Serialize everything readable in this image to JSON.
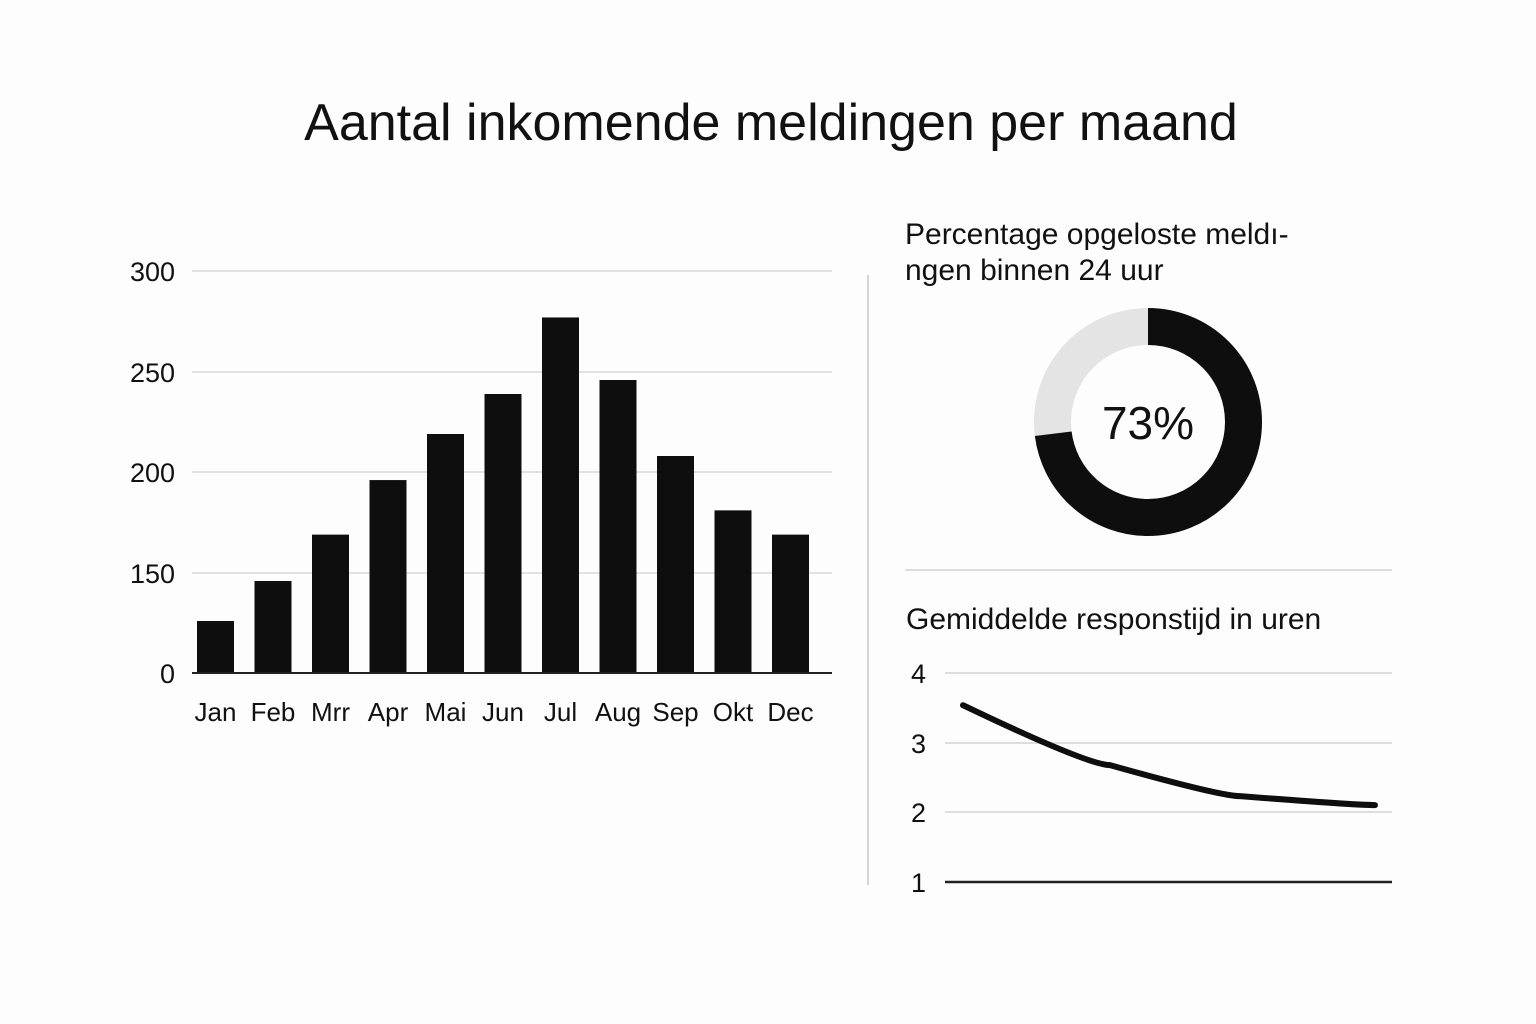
{
  "title": "Aantal inkomende meldingen per maand",
  "chart_data": [
    {
      "type": "bar",
      "title": "",
      "categories": [
        "Jan",
        "Feb",
        "Mrr",
        "Apr",
        "Mai",
        "Jun",
        "Jul",
        "Aug",
        "Sep",
        "Okt",
        "Dec"
      ],
      "values": [
        78,
        138,
        169,
        196,
        219,
        239,
        277,
        246,
        208,
        181,
        169
      ],
      "yticks": [
        "0",
        "150",
        "200",
        "250",
        "300"
      ],
      "ytick_values": [
        0,
        150,
        200,
        250,
        300
      ],
      "ylim": [
        0,
        300
      ],
      "grid": true,
      "color": "#0e0e0e"
    },
    {
      "type": "pie",
      "variant": "donut",
      "title_line1": "Percentage opgeloste meldı-",
      "title_line2": "ngen binnen 24 uur",
      "value": 73,
      "label": "73%",
      "colors": {
        "filled": "#0e0e0e",
        "remainder": "#e4e4e4"
      }
    },
    {
      "type": "line",
      "title": "Gemiddelde responstijd in uren",
      "values": [
        3.54,
        2.68,
        2.23,
        2.1
      ],
      "yticks": [
        "1",
        "2",
        "3",
        "4"
      ],
      "ytick_values": [
        1,
        2,
        3,
        4
      ],
      "ylim": [
        1,
        4
      ],
      "grid": true,
      "color": "#0e0e0e"
    }
  ]
}
